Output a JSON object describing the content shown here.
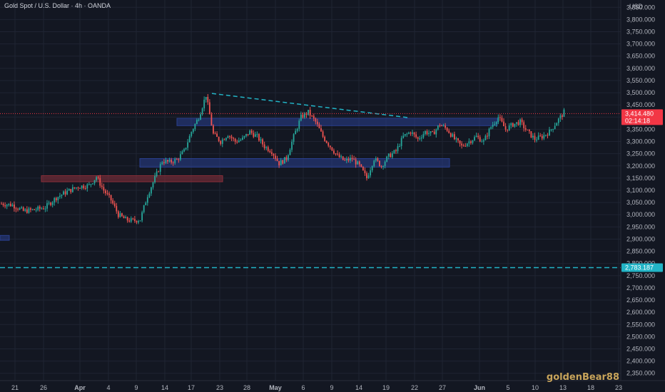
{
  "header": {
    "title": "Gold Spot / U.S. Dollar · 4h · OANDA"
  },
  "watermark": "goldenBear88",
  "colors": {
    "background": "#131722",
    "grid": "#1f2433",
    "up": "#26a69a",
    "down": "#ef5350",
    "zone_blue": "#2a3f8f",
    "zone_red": "#8a2f3a",
    "level": "#22b4c6",
    "price_tag": "#f23645"
  },
  "chart_data": {
    "type": "candlestick",
    "symbol": "Gold Spot / U.S. Dollar",
    "interval": "4h",
    "exchange": "OANDA",
    "currency": "USD",
    "ylim": [
      2320,
      3880
    ],
    "y_ticks": [
      2350,
      2400,
      2450,
      2500,
      2550,
      2600,
      2650,
      2700,
      2750,
      2800,
      2850,
      2900,
      2950,
      3000,
      3050,
      3100,
      3150,
      3200,
      3250,
      3300,
      3350,
      3400,
      3450,
      3500,
      3550,
      3600,
      3650,
      3700,
      3750,
      3800,
      3850
    ],
    "x_labels": [
      "21",
      "26",
      "Apr",
      "4",
      "9",
      "14",
      "17",
      "23",
      "28",
      "May",
      "6",
      "9",
      "14",
      "19",
      "22",
      "27",
      "Jun",
      "5",
      "10",
      "13",
      "18",
      "23"
    ],
    "last_price": "3,414.480",
    "countdown": "02:14:18",
    "level_tag": "2,783.187",
    "level": 2783.187,
    "anchors": [
      [
        0,
        3045
      ],
      [
        6,
        3040
      ],
      [
        12,
        3015
      ],
      [
        18,
        3020
      ],
      [
        24,
        3030
      ],
      [
        30,
        3070
      ],
      [
        36,
        3095
      ],
      [
        42,
        3115
      ],
      [
        48,
        3120
      ],
      [
        52,
        3155
      ],
      [
        56,
        3100
      ],
      [
        60,
        3060
      ],
      [
        64,
        3000
      ],
      [
        68,
        2980
      ],
      [
        72,
        2975
      ],
      [
        76,
        2980
      ],
      [
        80,
        3080
      ],
      [
        84,
        3150
      ],
      [
        88,
        3220
      ],
      [
        92,
        3215
      ],
      [
        96,
        3225
      ],
      [
        100,
        3260
      ],
      [
        104,
        3340
      ],
      [
        108,
        3400
      ],
      [
        112,
        3490
      ],
      [
        116,
        3330
      ],
      [
        120,
        3300
      ],
      [
        124,
        3330
      ],
      [
        128,
        3300
      ],
      [
        132,
        3310
      ],
      [
        136,
        3340
      ],
      [
        140,
        3320
      ],
      [
        144,
        3280
      ],
      [
        148,
        3260
      ],
      [
        152,
        3210
      ],
      [
        156,
        3230
      ],
      [
        160,
        3320
      ],
      [
        164,
        3400
      ],
      [
        168,
        3420
      ],
      [
        172,
        3380
      ],
      [
        176,
        3320
      ],
      [
        180,
        3280
      ],
      [
        184,
        3240
      ],
      [
        188,
        3220
      ],
      [
        192,
        3230
      ],
      [
        196,
        3200
      ],
      [
        200,
        3150
      ],
      [
        204,
        3230
      ],
      [
        208,
        3200
      ],
      [
        212,
        3240
      ],
      [
        216,
        3260
      ],
      [
        220,
        3320
      ],
      [
        224,
        3340
      ],
      [
        228,
        3310
      ],
      [
        232,
        3340
      ],
      [
        236,
        3330
      ],
      [
        240,
        3370
      ],
      [
        244,
        3350
      ],
      [
        248,
        3310
      ],
      [
        252,
        3280
      ],
      [
        256,
        3300
      ],
      [
        260,
        3320
      ],
      [
        264,
        3300
      ],
      [
        268,
        3360
      ],
      [
        272,
        3400
      ],
      [
        276,
        3350
      ],
      [
        280,
        3370
      ],
      [
        284,
        3380
      ],
      [
        288,
        3340
      ],
      [
        292,
        3310
      ],
      [
        296,
        3320
      ],
      [
        300,
        3340
      ],
      [
        304,
        3380
      ],
      [
        308,
        3420
      ]
    ]
  }
}
